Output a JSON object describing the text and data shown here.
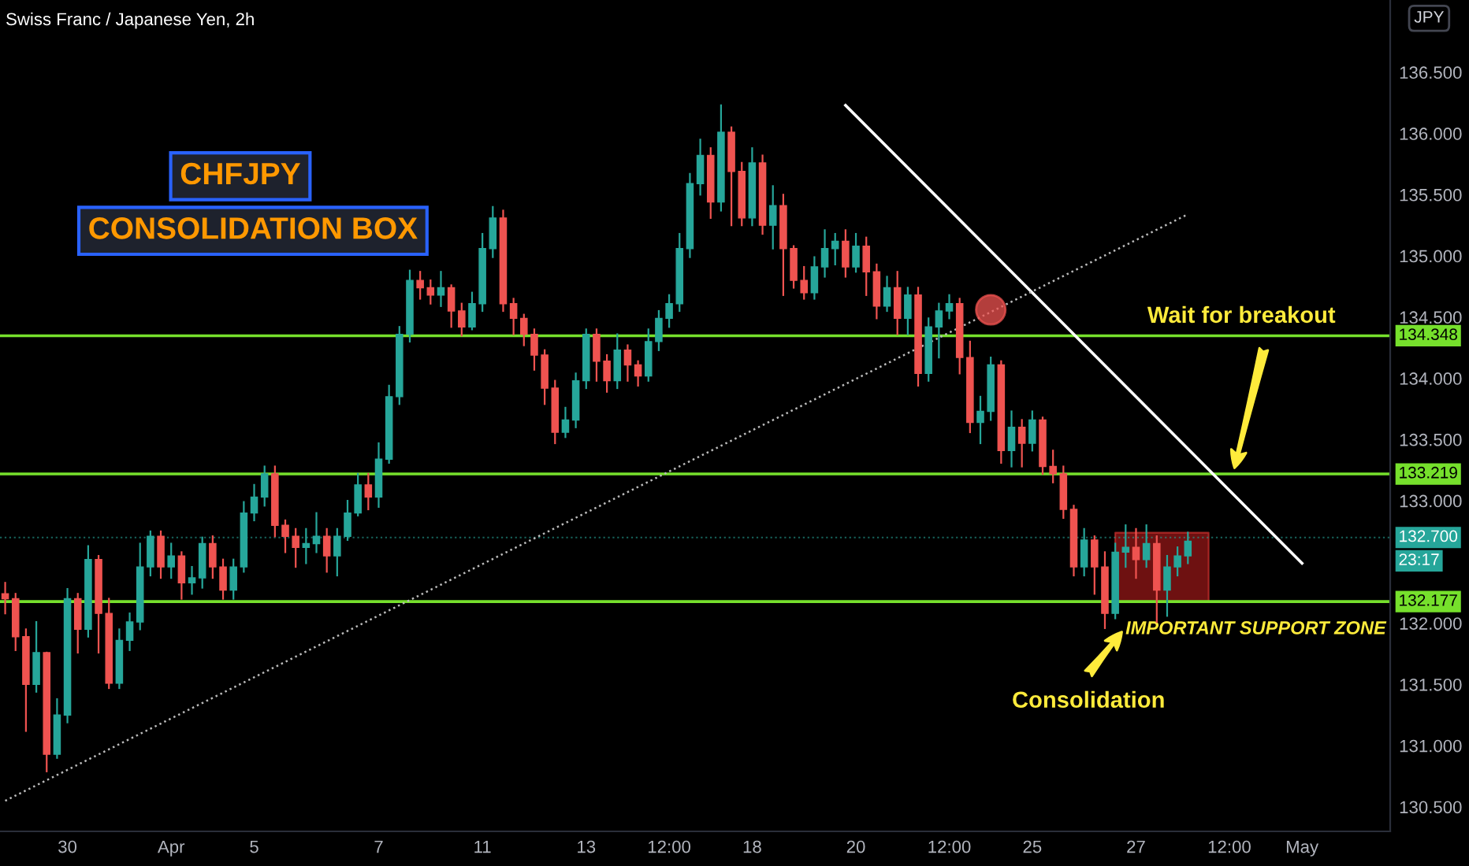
{
  "chart_data": {
    "type": "candlestick",
    "title": "Swiss Franc / Japanese Yen, 2h",
    "categories": [
      null,
      null,
      null,
      null,
      null,
      null,
      "30",
      null,
      null,
      null,
      null,
      null,
      null,
      null,
      null,
      null,
      "Apr",
      null,
      null,
      null,
      null,
      null,
      null,
      null,
      "5",
      null,
      null,
      null,
      null,
      null,
      null,
      null,
      null,
      null,
      null,
      null,
      "7",
      null,
      null,
      null,
      null,
      null,
      null,
      null,
      null,
      null,
      "11",
      null,
      null,
      null,
      null,
      null,
      null,
      null,
      null,
      null,
      "13",
      null,
      null,
      null,
      null,
      null,
      null,
      null,
      "12:00",
      null,
      null,
      null,
      null,
      null,
      null,
      null,
      "18",
      null,
      null,
      null,
      null,
      null,
      null,
      null,
      null,
      null,
      "20",
      null,
      null,
      null,
      null,
      null,
      null,
      null,
      null,
      "12:00",
      null,
      null,
      null,
      null,
      null,
      null,
      null,
      "25",
      null,
      null,
      null,
      null,
      null,
      null,
      null,
      null,
      null,
      "27",
      null,
      null,
      null,
      null,
      null,
      null,
      null,
      null,
      "12:00",
      null,
      null,
      null,
      null,
      null,
      null,
      "May",
      null,
      null,
      null,
      null,
      null,
      null,
      null,
      null
    ],
    "ohlc": [
      [
        132.24,
        132.33,
        132.08,
        132.2
      ],
      [
        132.2,
        132.24,
        131.78,
        131.89
      ],
      [
        131.89,
        131.95,
        131.12,
        131.5
      ],
      [
        131.5,
        132.01,
        131.44,
        131.76
      ],
      [
        131.76,
        131.76,
        130.79,
        130.93
      ],
      [
        130.93,
        131.38,
        130.9,
        131.25
      ],
      [
        131.25,
        132.28,
        131.19,
        132.2
      ],
      [
        132.2,
        132.24,
        131.76,
        131.95
      ],
      [
        131.95,
        132.63,
        131.89,
        132.52
      ],
      [
        132.52,
        132.55,
        131.76,
        132.08
      ],
      [
        132.08,
        132.2,
        131.47,
        131.51
      ],
      [
        131.51,
        131.95,
        131.47,
        131.86
      ],
      [
        131.86,
        132.08,
        131.78,
        132.01
      ],
      [
        132.01,
        132.65,
        131.95,
        132.46
      ],
      [
        132.46,
        132.75,
        132.39,
        132.71
      ],
      [
        132.71,
        132.75,
        132.37,
        132.46
      ],
      [
        132.46,
        132.65,
        132.37,
        132.55
      ],
      [
        132.55,
        132.58,
        132.2,
        132.33
      ],
      [
        132.33,
        132.46,
        132.24,
        132.37
      ],
      [
        132.37,
        132.7,
        132.29,
        132.65
      ],
      [
        132.65,
        132.71,
        132.37,
        132.46
      ],
      [
        132.46,
        132.52,
        132.2,
        132.27
      ],
      [
        132.27,
        132.52,
        132.2,
        132.46
      ],
      [
        132.46,
        132.99,
        132.42,
        132.9
      ],
      [
        132.9,
        133.13,
        132.84,
        133.03
      ],
      [
        133.03,
        133.28,
        132.96,
        133.22
      ],
      [
        133.22,
        133.28,
        132.71,
        132.8
      ],
      [
        132.8,
        132.84,
        132.58,
        132.71
      ],
      [
        132.71,
        132.77,
        132.46,
        132.62
      ],
      [
        132.62,
        132.77,
        132.49,
        132.65
      ],
      [
        132.65,
        132.9,
        132.58,
        132.71
      ],
      [
        132.71,
        132.77,
        132.42,
        132.55
      ],
      [
        132.55,
        132.77,
        132.39,
        132.71
      ],
      [
        132.71,
        133.0,
        132.68,
        132.9
      ],
      [
        132.9,
        133.22,
        132.88,
        133.13
      ],
      [
        133.13,
        133.22,
        132.93,
        133.03
      ],
      [
        133.03,
        133.47,
        132.95,
        133.34
      ],
      [
        133.34,
        133.94,
        133.31,
        133.85
      ],
      [
        133.85,
        134.42,
        133.79,
        134.36
      ],
      [
        134.36,
        134.88,
        134.3,
        134.8
      ],
      [
        134.8,
        134.87,
        134.65,
        134.74
      ],
      [
        134.74,
        134.8,
        134.61,
        134.68
      ],
      [
        134.68,
        134.87,
        134.59,
        134.74
      ],
      [
        134.74,
        134.76,
        134.42,
        134.55
      ],
      [
        134.55,
        134.61,
        134.35,
        134.42
      ],
      [
        134.42,
        134.7,
        134.4,
        134.61
      ],
      [
        134.61,
        135.18,
        134.55,
        135.06
      ],
      [
        135.06,
        135.4,
        134.99,
        135.31
      ],
      [
        135.31,
        135.37,
        134.55,
        134.61
      ],
      [
        134.61,
        134.65,
        134.36,
        134.49
      ],
      [
        134.49,
        134.52,
        134.27,
        134.36
      ],
      [
        134.36,
        134.4,
        134.07,
        134.19
      ],
      [
        134.19,
        134.23,
        133.79,
        133.92
      ],
      [
        133.92,
        133.98,
        133.47,
        133.56
      ],
      [
        133.56,
        133.76,
        133.52,
        133.66
      ],
      [
        133.66,
        134.04,
        133.6,
        133.98
      ],
      [
        133.98,
        134.4,
        133.92,
        134.36
      ],
      [
        134.36,
        134.4,
        133.98,
        134.14
      ],
      [
        134.14,
        134.19,
        133.89,
        133.98
      ],
      [
        133.98,
        134.36,
        133.92,
        134.23
      ],
      [
        134.23,
        134.27,
        133.98,
        134.11
      ],
      [
        134.11,
        134.14,
        133.94,
        134.02
      ],
      [
        134.02,
        134.4,
        133.98,
        134.3
      ],
      [
        134.3,
        134.55,
        134.23,
        134.49
      ],
      [
        134.49,
        134.68,
        134.42,
        134.61
      ],
      [
        134.61,
        135.18,
        134.55,
        135.06
      ],
      [
        135.06,
        135.67,
        134.99,
        135.59
      ],
      [
        135.59,
        135.95,
        135.5,
        135.82
      ],
      [
        135.82,
        135.88,
        135.31,
        135.44
      ],
      [
        135.44,
        136.23,
        135.37,
        136.01
      ],
      [
        136.01,
        136.05,
        135.25,
        135.69
      ],
      [
        135.69,
        135.76,
        135.25,
        135.31
      ],
      [
        135.31,
        135.88,
        135.25,
        135.76
      ],
      [
        135.76,
        135.82,
        135.18,
        135.25
      ],
      [
        135.25,
        135.57,
        135.06,
        135.41
      ],
      [
        135.41,
        135.5,
        134.68,
        135.06
      ],
      [
        135.06,
        135.08,
        134.74,
        134.8
      ],
      [
        134.8,
        134.91,
        134.65,
        134.7
      ],
      [
        134.7,
        134.99,
        134.65,
        134.91
      ],
      [
        134.91,
        135.21,
        134.83,
        135.06
      ],
      [
        135.06,
        135.18,
        134.93,
        135.12
      ],
      [
        135.12,
        135.21,
        134.83,
        134.91
      ],
      [
        134.91,
        135.18,
        134.87,
        135.08
      ],
      [
        135.08,
        135.15,
        134.68,
        134.87
      ],
      [
        134.87,
        134.93,
        134.49,
        134.59
      ],
      [
        134.59,
        134.83,
        134.55,
        134.74
      ],
      [
        134.74,
        134.87,
        134.36,
        134.49
      ],
      [
        134.49,
        134.74,
        134.36,
        134.68
      ],
      [
        134.68,
        134.74,
        133.94,
        134.04
      ],
      [
        134.04,
        134.49,
        133.98,
        134.42
      ],
      [
        134.42,
        134.61,
        134.17,
        134.55
      ],
      [
        134.55,
        134.68,
        134.49,
        134.61
      ],
      [
        134.61,
        134.65,
        134.04,
        134.17
      ],
      [
        134.17,
        134.3,
        133.56,
        133.64
      ],
      [
        133.64,
        133.85,
        133.47,
        133.73
      ],
      [
        133.73,
        134.17,
        133.66,
        134.11
      ],
      [
        134.11,
        134.14,
        133.31,
        133.41
      ],
      [
        133.41,
        133.73,
        133.28,
        133.6
      ],
      [
        133.6,
        133.66,
        133.28,
        133.47
      ],
      [
        133.47,
        133.73,
        133.41,
        133.66
      ],
      [
        133.66,
        133.68,
        133.22,
        133.28
      ],
      [
        133.28,
        133.41,
        133.15,
        133.22
      ],
      [
        133.22,
        133.28,
        132.86,
        132.93
      ],
      [
        132.93,
        132.96,
        132.39,
        132.46
      ],
      [
        132.46,
        132.77,
        132.39,
        132.68
      ],
      [
        132.68,
        132.71,
        132.24,
        132.46
      ],
      [
        132.46,
        132.58,
        131.96,
        132.08
      ],
      [
        132.08,
        132.65,
        132.04,
        132.58
      ],
      [
        132.58,
        132.8,
        132.46,
        132.62
      ],
      [
        132.62,
        132.77,
        132.37,
        132.52
      ],
      [
        132.52,
        132.8,
        132.46,
        132.65
      ],
      [
        132.65,
        132.71,
        132.01,
        132.27
      ],
      [
        132.27,
        132.55,
        132.06,
        132.46
      ],
      [
        132.46,
        132.62,
        132.39,
        132.55
      ],
      [
        132.55,
        132.74,
        132.49,
        132.67
      ],
      null,
      null,
      null,
      null,
      null,
      null,
      null,
      null,
      null,
      null,
      null,
      null,
      null,
      null,
      null,
      null,
      null,
      null,
      null
    ],
    "series": [
      {
        "type": "line",
        "color": "#ffffff",
        "line_style": "solid",
        "values": [
          null,
          null,
          null,
          null,
          null,
          null,
          null,
          null,
          null,
          null,
          null,
          null,
          null,
          null,
          null,
          null,
          null,
          null,
          null,
          null,
          null,
          null,
          null,
          null,
          null,
          null,
          null,
          null,
          null,
          null,
          null,
          null,
          null,
          null,
          null,
          null,
          null,
          null,
          null,
          null,
          null,
          null,
          null,
          null,
          null,
          null,
          null,
          null,
          null,
          null,
          null,
          null,
          null,
          null,
          null,
          null,
          null,
          null,
          null,
          null,
          null,
          null,
          null,
          null,
          null,
          null,
          null,
          null,
          null,
          null,
          null,
          null,
          null,
          null,
          null,
          null,
          null,
          null,
          null,
          null,
          null,
          136.23,
          null,
          null,
          null,
          null,
          null,
          null,
          null,
          null,
          null,
          null,
          null,
          null,
          null,
          null,
          null,
          null,
          null,
          null,
          null,
          null,
          null,
          null,
          null,
          null,
          null,
          null,
          null,
          null,
          null,
          null,
          null,
          null,
          null,
          null,
          null,
          null,
          null,
          null,
          null,
          null,
          null,
          null,
          null,
          132.49,
          null,
          null,
          null,
          null,
          null,
          null,
          null,
          null
        ]
      },
      {
        "type": "line",
        "color": "#bbbbbb",
        "line_style": "dotted",
        "values": [
          130.55,
          null,
          null,
          null,
          null,
          null,
          null,
          null,
          null,
          null,
          null,
          null,
          null,
          null,
          null,
          null,
          null,
          null,
          null,
          null,
          null,
          null,
          null,
          null,
          null,
          null,
          null,
          null,
          null,
          null,
          null,
          null,
          null,
          null,
          null,
          null,
          null,
          null,
          null,
          null,
          null,
          null,
          null,
          null,
          null,
          null,
          null,
          null,
          null,
          null,
          null,
          null,
          null,
          null,
          null,
          null,
          null,
          null,
          null,
          null,
          null,
          null,
          null,
          null,
          null,
          null,
          null,
          null,
          null,
          null,
          null,
          null,
          null,
          null,
          null,
          null,
          null,
          null,
          null,
          null,
          null,
          null,
          null,
          null,
          null,
          null,
          null,
          null,
          null,
          null,
          null,
          null,
          null,
          null,
          null,
          null,
          null,
          null,
          null,
          null,
          null,
          null,
          null,
          null,
          null,
          null,
          null,
          null,
          null,
          null,
          null,
          null,
          null,
          null,
          135.34,
          null,
          null,
          null,
          null,
          null,
          null,
          null,
          null,
          null,
          null,
          null,
          null,
          null,
          null,
          null,
          null,
          null,
          null,
          null
        ]
      },
      {
        "type": "scatter",
        "color": "#ef5350",
        "marker": "circle",
        "values": [
          null,
          null,
          null,
          null,
          null,
          null,
          null,
          null,
          null,
          null,
          null,
          null,
          null,
          null,
          null,
          null,
          null,
          null,
          null,
          null,
          null,
          null,
          null,
          null,
          null,
          null,
          null,
          null,
          null,
          null,
          null,
          null,
          null,
          null,
          null,
          null,
          null,
          null,
          null,
          null,
          null,
          null,
          null,
          null,
          null,
          null,
          null,
          null,
          null,
          null,
          null,
          null,
          null,
          null,
          null,
          null,
          null,
          null,
          null,
          null,
          null,
          null,
          null,
          null,
          null,
          null,
          null,
          null,
          null,
          null,
          null,
          null,
          null,
          null,
          null,
          null,
          null,
          null,
          null,
          null,
          null,
          null,
          null,
          null,
          null,
          null,
          null,
          null,
          null,
          null,
          null,
          null,
          null,
          null,
          null,
          134.56,
          null,
          null,
          null,
          null,
          null,
          null,
          null,
          null,
          null,
          null,
          null,
          null,
          null,
          null,
          null,
          null,
          null,
          null,
          null,
          null,
          null,
          null,
          null,
          null,
          null,
          null,
          null,
          null,
          null,
          null,
          null,
          null,
          null,
          null,
          null,
          null,
          null,
          null
        ]
      },
      {
        "type": "area",
        "color": "#b71c1c",
        "values": [
          null,
          null,
          null,
          null,
          null,
          null,
          null,
          null,
          null,
          null,
          null,
          null,
          null,
          null,
          null,
          null,
          null,
          null,
          null,
          null,
          null,
          null,
          null,
          null,
          null,
          null,
          null,
          null,
          null,
          null,
          null,
          null,
          null,
          null,
          null,
          null,
          null,
          null,
          null,
          null,
          null,
          null,
          null,
          null,
          null,
          null,
          null,
          null,
          null,
          null,
          null,
          null,
          null,
          null,
          null,
          null,
          null,
          null,
          null,
          null,
          null,
          null,
          null,
          null,
          null,
          null,
          null,
          null,
          null,
          null,
          null,
          null,
          null,
          null,
          null,
          null,
          null,
          null,
          null,
          null,
          null,
          null,
          null,
          null,
          null,
          null,
          null,
          null,
          null,
          null,
          null,
          null,
          null,
          null,
          null,
          null,
          null,
          null,
          null,
          null,
          null,
          null,
          null,
          null,
          null,
          null,
          null,
          132.74,
          132.74,
          132.74,
          132.74,
          132.74,
          132.74,
          132.74,
          132.74,
          132.74,
          132.74,
          null,
          null,
          null,
          null,
          null,
          null,
          null,
          null,
          null,
          null,
          null,
          null,
          null,
          null,
          null,
          null,
          null
        ]
      }
    ],
    "ylim": [
      130.3,
      137.09
    ],
    "yticks": [
      {
        "value": 130.5,
        "label": "130.500"
      },
      {
        "value": 131.0,
        "label": "131.000"
      },
      {
        "value": 131.5,
        "label": "131.500"
      },
      {
        "value": 132.0,
        "label": "132.000"
      },
      {
        "value": 133.0,
        "label": "133.000"
      },
      {
        "value": 133.5,
        "label": "133.500"
      },
      {
        "value": 134.0,
        "label": "134.000"
      },
      {
        "value": 134.5,
        "label": "134.500"
      },
      {
        "value": 135.0,
        "label": "135.000"
      },
      {
        "value": 135.5,
        "label": "135.500"
      },
      {
        "value": 136.0,
        "label": "136.000"
      },
      {
        "value": 136.5,
        "label": "136.500"
      }
    ],
    "ref_lines": [
      {
        "axis": "y",
        "value": 134.348,
        "label": "134.348",
        "color": "#76e02c",
        "line_style": "solid"
      },
      {
        "axis": "y",
        "value": 133.219,
        "label": "133.219",
        "color": "#76e02c",
        "line_style": "solid"
      },
      {
        "axis": "y",
        "value": 132.177,
        "label": "132.177",
        "color": "#76e02c",
        "line_style": "solid"
      },
      {
        "axis": "y",
        "value": 132.7,
        "label": "132.700",
        "color": "#26a69a",
        "line_style": "dotted"
      }
    ],
    "annotations": [
      "CHFJPY",
      "CONSOLIDATION BOX",
      "Wait for breakout",
      "Consolidation",
      "IMPORTANT SUPPORT ZONE",
      "JPY",
      "23:17"
    ],
    "grid": false,
    "legend": false
  }
}
